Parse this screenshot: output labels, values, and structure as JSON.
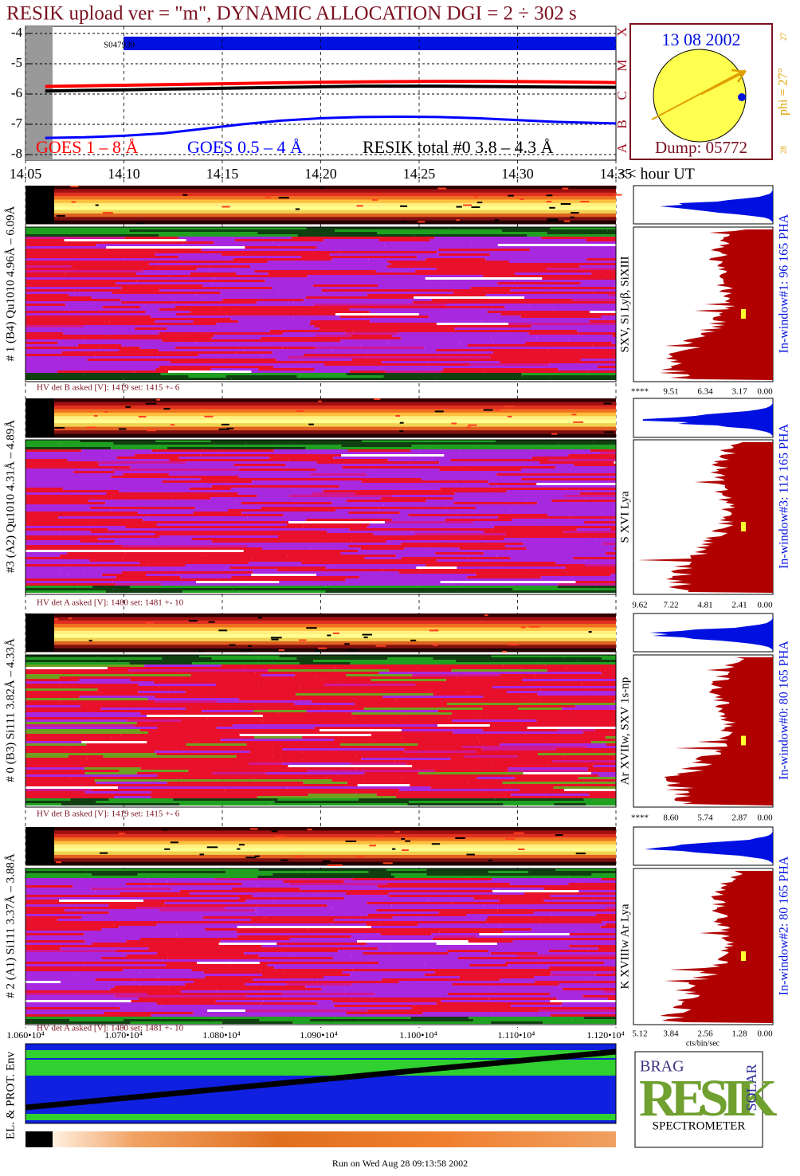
{
  "title": "RESIK upload ver = \"m\", DYNAMIC ALLOCATION  DGI =   2 ÷ 302 s",
  "chart_data": {
    "type": "line",
    "x": [
      14.06,
      14.08,
      14.1,
      14.12,
      14.14,
      14.16,
      14.18,
      14.2,
      14.22,
      14.24,
      14.26,
      14.28,
      14.3,
      14.32,
      14.35
    ],
    "series": [
      {
        "name": "GOES 1 – 8 Å",
        "color": "#ff0000",
        "values": [
          -5.75,
          -5.73,
          -5.71,
          -5.69,
          -5.67,
          -5.65,
          -5.63,
          -5.61,
          -5.6,
          -5.59,
          -5.58,
          -5.58,
          -5.59,
          -5.6,
          -5.62
        ]
      },
      {
        "name": "GOES 0.5 – 4 Å",
        "color": "#0000ff",
        "values": [
          -7.45,
          -7.43,
          -7.38,
          -7.3,
          -7.15,
          -7.0,
          -6.88,
          -6.8,
          -6.76,
          -6.75,
          -6.76,
          -6.8,
          -6.86,
          -6.92,
          -6.97
        ]
      },
      {
        "name": "RESIK total #0  3.8 – 4.3 Å",
        "color": "#000000",
        "values": [
          -5.9,
          -5.88,
          -5.86,
          -5.84,
          -5.82,
          -5.8,
          -5.78,
          -5.76,
          -5.74,
          -5.74,
          -5.74,
          -5.75,
          -5.76,
          -5.77,
          -5.78
        ]
      }
    ],
    "xlim": [
      14.05,
      14.35
    ],
    "xticks": [
      {
        "value": 14.05,
        "label": "14.05"
      },
      {
        "value": 14.1,
        "label": "14.10"
      },
      {
        "value": 14.15,
        "label": "14.15"
      },
      {
        "value": 14.2,
        "label": "14.20"
      },
      {
        "value": 14.25,
        "label": "14.25"
      },
      {
        "value": 14.3,
        "label": "14.30"
      },
      {
        "value": 14.35,
        "label": "14.35"
      }
    ],
    "ylim": [
      -8,
      -4
    ],
    "yticks": [
      -8,
      -7,
      -6,
      -5,
      -4
    ],
    "grid": true,
    "annotation": "S047939",
    "x_axis_label": "<< hour UT"
  },
  "class_labels": [
    "X",
    "M",
    "C",
    "B",
    "A"
  ],
  "date": "13 08 2002",
  "dump": "Dump: 05772",
  "phi": "phi = 27°",
  "phi_top": "27",
  "phi_bottom": "28",
  "panels": [
    {
      "label": "# 1 (B4) Qu1010 4.96Å – 6.09Å",
      "lines": "SXV, Si Lyβ, SiXIII",
      "hv": "HV det B asked [V]:  1419 set:  1415 +-    6",
      "window": "In-window#1:   96 165 PHA",
      "ticks": [
        "****",
        "9.51",
        "6.34",
        "3.17",
        "0.00"
      ]
    },
    {
      "label": "#3 (A2) Qu1010  4.31Å – 4.89Å",
      "lines": "S XVI Lya",
      "hv": "HV det A asked [V]:  1480 set:  1481 +-   10",
      "window": "In-window#3:  112 165 PHA",
      "ticks": [
        "9.62",
        "7.22",
        "4.81",
        "2.41",
        "0.00"
      ]
    },
    {
      "label": "# 0 (B3) Si111  3.82Å – 4.33Å",
      "lines": "Ar XVIIw,  SXV 1s-np",
      "hv": "HV det B asked [V]:  1419 set:  1415 +-    6",
      "window": "In-window#0:   80 165 PHA",
      "ticks": [
        "****",
        "8.60",
        "5.74",
        "2.87",
        "0.00"
      ]
    },
    {
      "label": "# 2 (A1) Si111  3.37Å – 3.88Å",
      "lines": "K XVIIIw  Ar Lya",
      "hv": "HV det A asked [V]:  1480 set:  1481 +-   10",
      "window": "In-window#2:   80 165 PHA",
      "ticks": [
        "5.12",
        "3.84",
        "2.56",
        "1.28",
        "0.00"
      ]
    }
  ],
  "pha_unit": "cts/bin/sec",
  "bottom_ticks": [
    "1.060•10⁴",
    "1.070•10⁴",
    "1.080•10⁴",
    "1.090•10⁴",
    "1.100•10⁴",
    "1.110•10⁴",
    "1.120•10⁴"
  ],
  "env_label": "EL. & PROT. Env",
  "logo": {
    "top": "BRAG",
    "main": "RESIK",
    "side": "SOLAR",
    "bottom": "SPECTROMETER"
  },
  "footer": "Run on Wed Aug 28 09:13:58 2002"
}
